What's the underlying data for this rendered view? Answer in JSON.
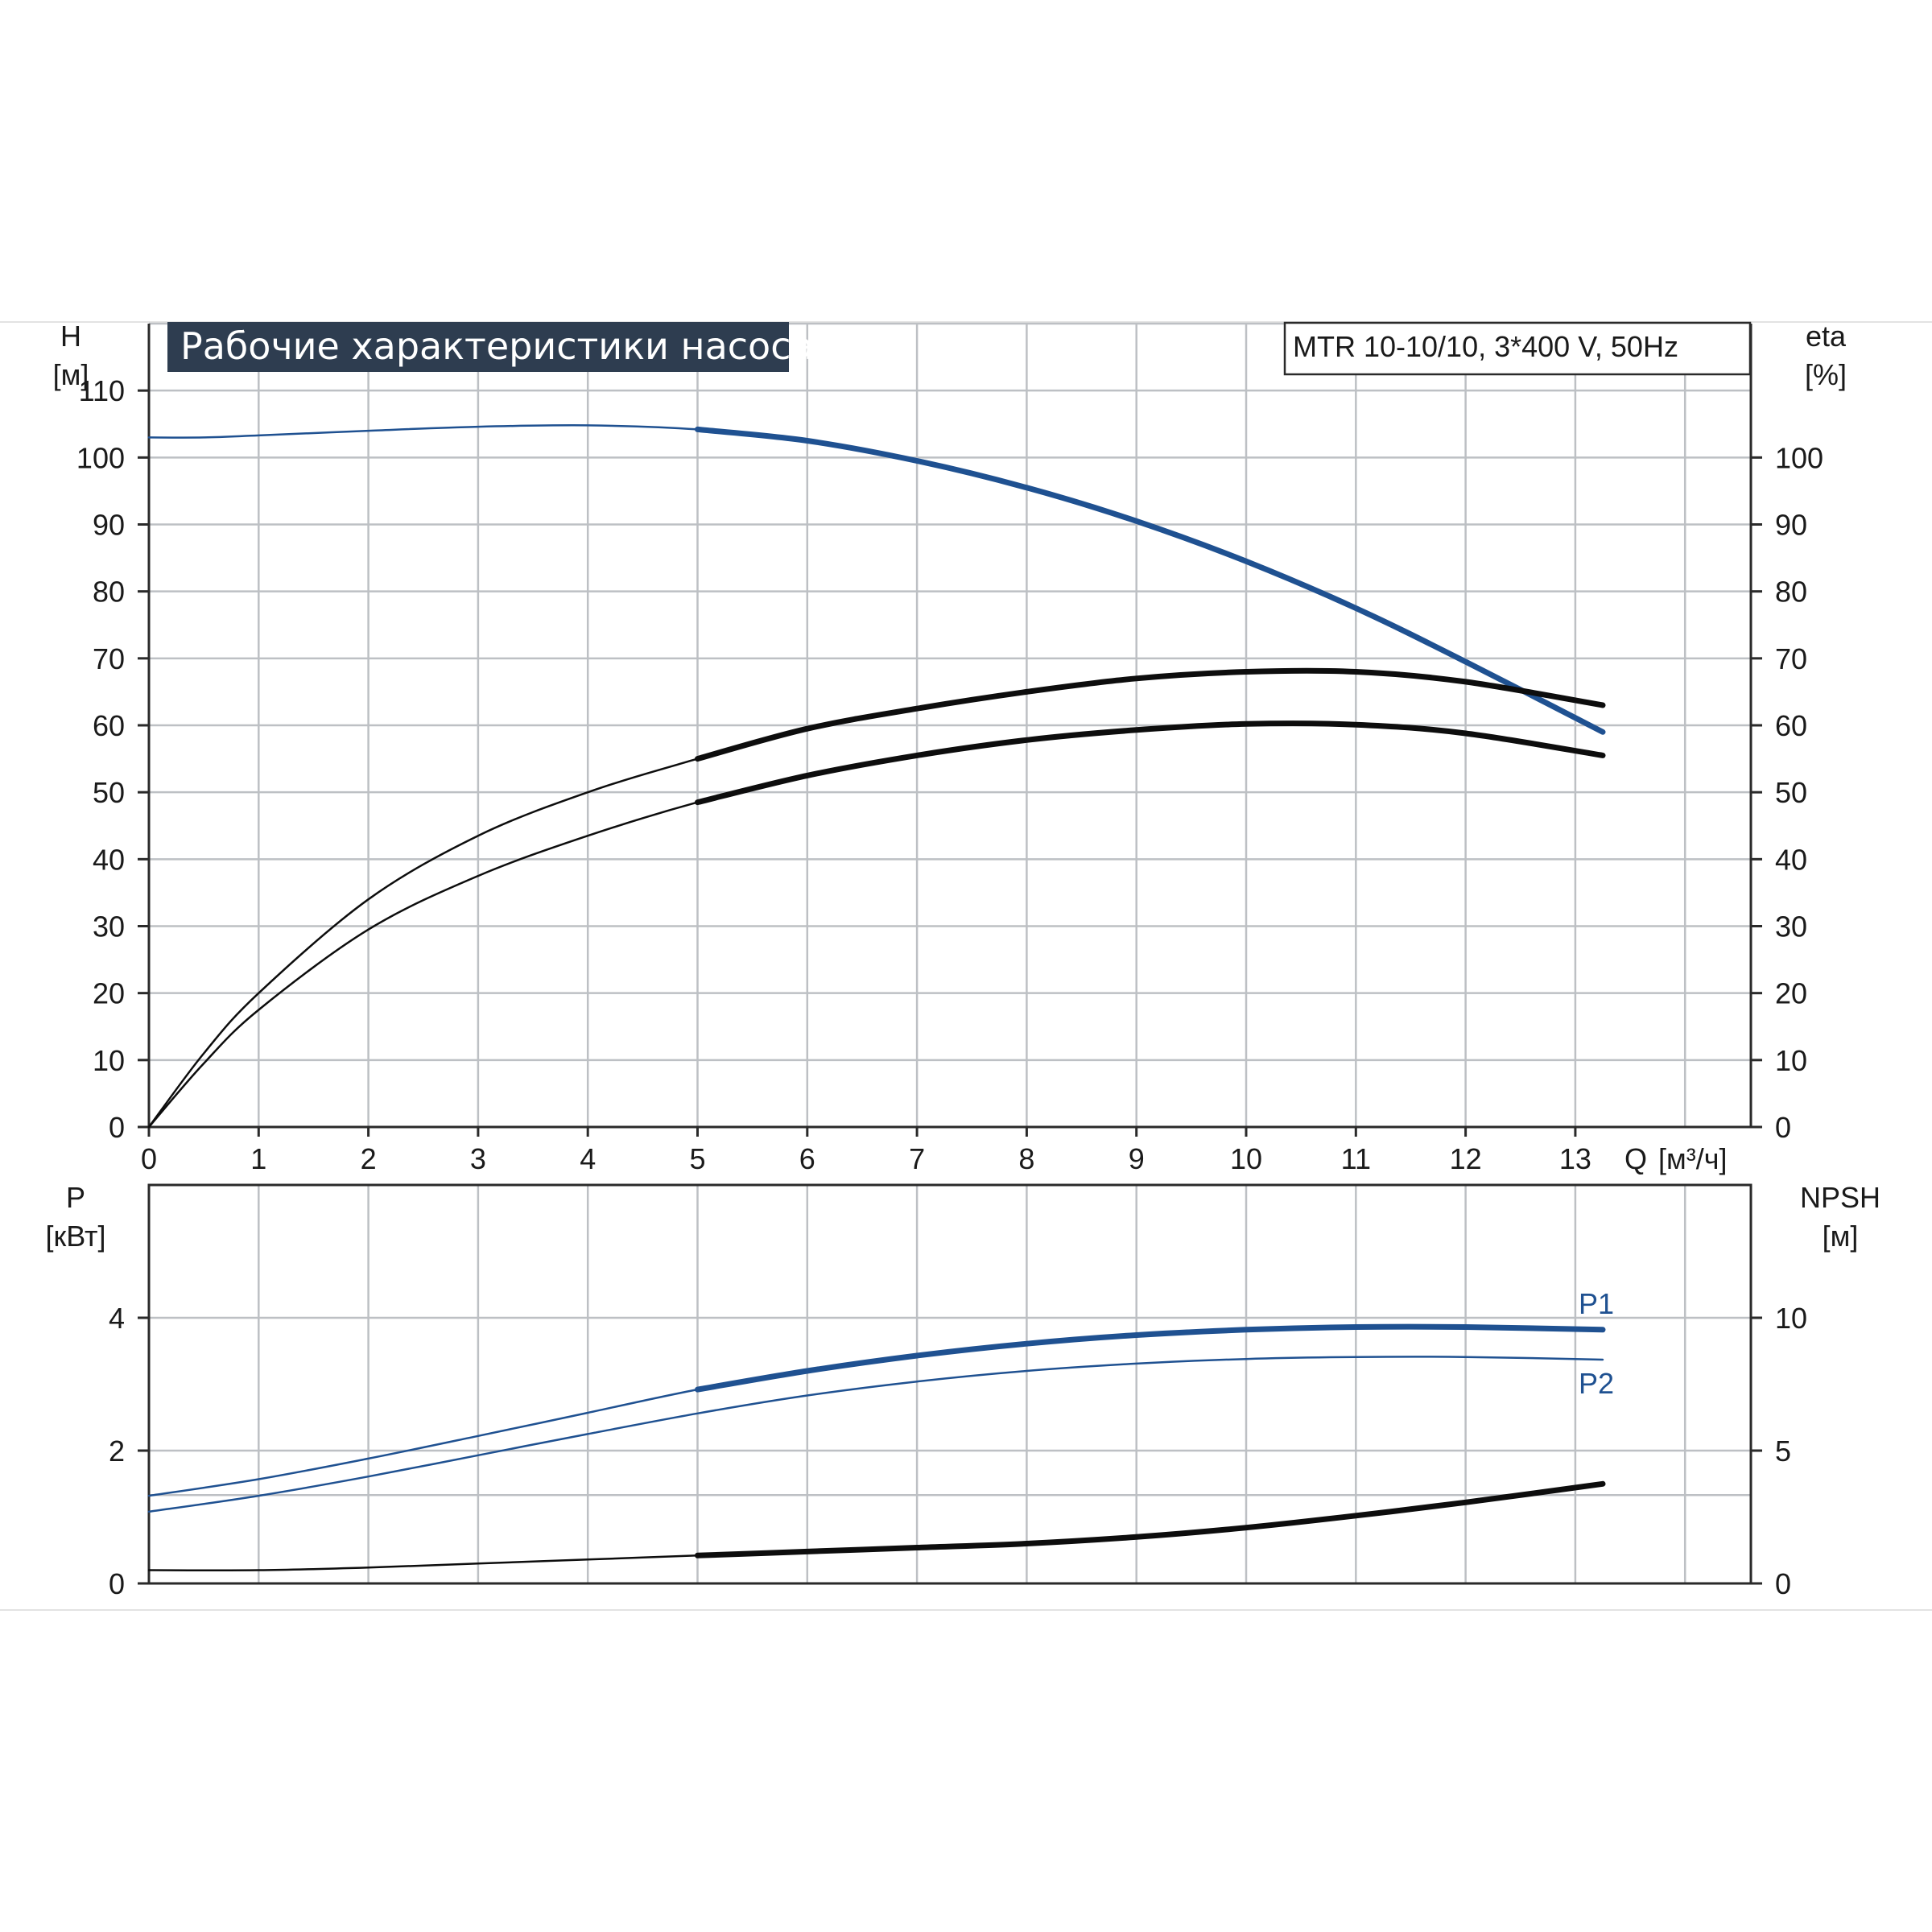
{
  "title": "Рабочие характеристики насоса",
  "model": "MTR 10-10/10, 3*400 V, 50Hz",
  "colors": {
    "blue": "#1f5191",
    "black": "#0d0d0d",
    "title_bg": "#2e3d50",
    "grid": "#bdc0c4"
  },
  "chart_data": [
    {
      "type": "line",
      "name": "upper-panel",
      "left_axis": {
        "label": "H",
        "unit": "[м]",
        "ylim": [
          0,
          120
        ],
        "ticks": [
          0,
          10,
          20,
          30,
          40,
          50,
          60,
          70,
          80,
          90,
          100,
          110
        ]
      },
      "right_axis": {
        "label": "eta",
        "unit": "[%]",
        "ylim": [
          0,
          120
        ],
        "ticks": [
          0,
          10,
          20,
          30,
          40,
          50,
          60,
          70,
          80,
          90,
          100
        ]
      },
      "x_axis": {
        "label": "Q",
        "unit": "[м³/ч]",
        "xlim": [
          0,
          14.6
        ],
        "ticks": [
          0,
          1,
          2,
          3,
          4,
          5,
          6,
          7,
          8,
          9,
          10,
          11,
          12,
          13
        ]
      },
      "grid": true,
      "series": [
        {
          "color": "#1f5191",
          "axis": "left",
          "bold_from": 5,
          "x": [
            0,
            0.5,
            1,
            2,
            3,
            4,
            5,
            6,
            7,
            8,
            9,
            10,
            11,
            12,
            13.25
          ],
          "y": [
            103,
            103,
            103.3,
            104,
            104.6,
            104.8,
            104.2,
            102.5,
            99.5,
            95.5,
            90.5,
            84.5,
            77.5,
            69.5,
            59
          ]
        },
        {
          "color": "#0d0d0d",
          "axis": "right",
          "bold_from": 5,
          "x": [
            0,
            0.5,
            1,
            2,
            3,
            4,
            5,
            6,
            7,
            8,
            9,
            10,
            11,
            12,
            13.25
          ],
          "y": [
            0,
            11,
            20,
            34,
            43.5,
            50,
            55,
            59.5,
            62.5,
            65,
            67,
            68,
            68,
            66.5,
            63
          ]
        },
        {
          "color": "#0d0d0d",
          "axis": "right",
          "bold_from": 5,
          "x": [
            0,
            0.5,
            1,
            2,
            3,
            4,
            5,
            6,
            7,
            8,
            9,
            10,
            11,
            12,
            13.25
          ],
          "y": [
            0,
            9.5,
            17.5,
            29.5,
            37.5,
            43.5,
            48.5,
            52.5,
            55.5,
            57.8,
            59.3,
            60.2,
            60.1,
            58.8,
            55.5
          ]
        }
      ]
    },
    {
      "type": "line",
      "name": "lower-panel",
      "left_axis": {
        "label": "P",
        "unit": "[кВт]",
        "ylim": [
          0,
          6
        ],
        "ticks": [
          0,
          2,
          4
        ]
      },
      "right_axis": {
        "label": "NPSH",
        "unit": "[м]",
        "ylim": [
          0,
          15
        ],
        "ticks": [
          0,
          5,
          10
        ]
      },
      "x_axis": {
        "xlim": [
          0,
          14.6
        ]
      },
      "grid": true,
      "series": [
        {
          "name": "P1",
          "color": "#1f5191",
          "axis": "left",
          "bold_from": 5,
          "x": [
            0,
            1,
            2,
            3,
            4,
            5,
            6,
            7,
            8,
            9,
            10,
            11,
            12,
            13.25
          ],
          "y": [
            1.32,
            1.57,
            1.88,
            2.22,
            2.57,
            2.92,
            3.2,
            3.43,
            3.61,
            3.74,
            3.82,
            3.86,
            3.86,
            3.82
          ]
        },
        {
          "name": "P2",
          "color": "#1f5191",
          "axis": "left",
          "bold_from": null,
          "x": [
            0,
            1,
            2,
            3,
            4,
            5,
            6,
            7,
            8,
            9,
            10,
            11,
            12,
            13.25
          ],
          "y": [
            1.08,
            1.32,
            1.61,
            1.93,
            2.25,
            2.56,
            2.83,
            3.04,
            3.2,
            3.31,
            3.38,
            3.41,
            3.41,
            3.37
          ]
        },
        {
          "color": "#0d0d0d",
          "axis": "right",
          "bold_from": 5,
          "x": [
            0,
            1,
            2,
            3,
            4,
            5,
            6,
            7,
            8,
            9,
            10,
            11,
            12,
            13.25
          ],
          "y": [
            0.5,
            0.5,
            0.6,
            0.75,
            0.9,
            1.05,
            1.2,
            1.35,
            1.5,
            1.75,
            2.1,
            2.55,
            3.05,
            3.75
          ]
        }
      ]
    }
  ]
}
